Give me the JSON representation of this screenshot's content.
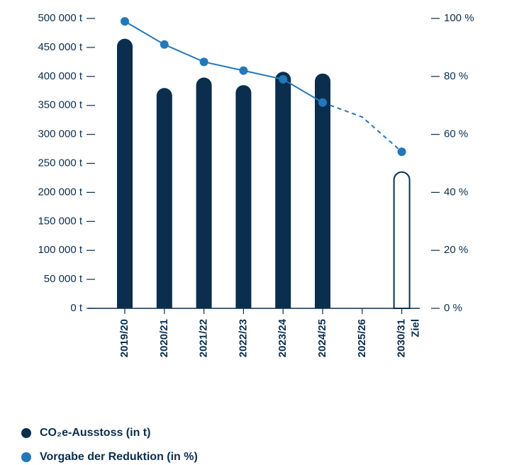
{
  "chart_data": {
    "type": "bar_line",
    "categories": [
      "2019/20",
      "2020/21",
      "2021/22",
      "2022/23",
      "2023/24",
      "2024/25",
      "2025/26",
      "2030/31"
    ],
    "target_label": "Ziel",
    "series": [
      {
        "name": "CO₂e-Ausstoss (in t)",
        "color": "#0b2e4f",
        "type": "bar",
        "values": [
          465000,
          380000,
          398000,
          385000,
          408000,
          405000,
          null,
          235000
        ],
        "outlined": [
          false,
          false,
          false,
          false,
          false,
          false,
          false,
          true
        ]
      },
      {
        "name": "Vorgabe der Reduktion (in %)",
        "color": "#2477b8",
        "type": "line",
        "axis": "y2",
        "values": [
          99,
          91,
          85,
          82,
          79,
          71,
          66,
          54
        ],
        "markers": [
          true,
          true,
          true,
          true,
          true,
          true,
          false,
          true
        ],
        "dashed_from": "2024/25"
      }
    ],
    "ylim": [
      0,
      500000
    ],
    "yticks": [
      {
        "value": 0,
        "label": "0 t"
      },
      {
        "value": 50000,
        "label": "50 000 t"
      },
      {
        "value": 100000,
        "label": "100 000 t"
      },
      {
        "value": 150000,
        "label": "150 000 t"
      },
      {
        "value": 200000,
        "label": "200 000 t"
      },
      {
        "value": 250000,
        "label": "250 000 t"
      },
      {
        "value": 300000,
        "label": "300 000 t"
      },
      {
        "value": 350000,
        "label": "350 000 t"
      },
      {
        "value": 400000,
        "label": "400 000 t"
      },
      {
        "value": 450000,
        "label": "450 000 t"
      },
      {
        "value": 500000,
        "label": "500 000 t"
      }
    ],
    "y2lim": [
      0,
      100
    ],
    "y2ticks": [
      {
        "value": 0,
        "label": "0 %"
      },
      {
        "value": 20,
        "label": "20 %"
      },
      {
        "value": 40,
        "label": "40 %"
      },
      {
        "value": 60,
        "label": "60 %"
      },
      {
        "value": 80,
        "label": "80 %"
      },
      {
        "value": 100,
        "label": "100 %"
      }
    ]
  }
}
